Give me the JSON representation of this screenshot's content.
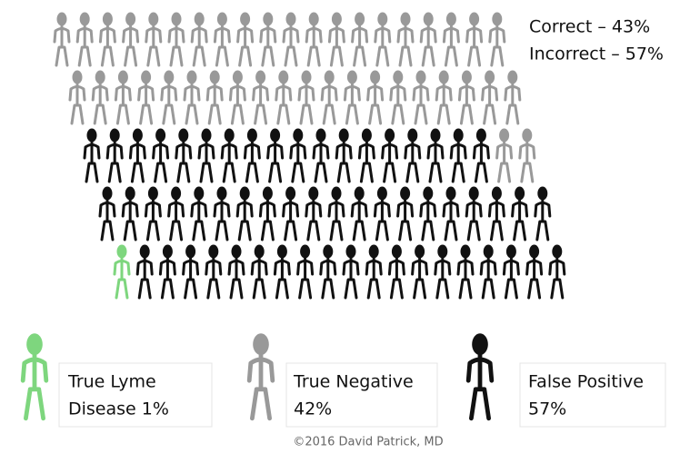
{
  "header": {
    "lines": [
      "Correct – 43%",
      "Incorrect – 57%"
    ]
  },
  "groups": [
    {
      "label": [
        "True Negative",
        "42%"
      ],
      "count": 42,
      "color": "#999999"
    },
    {
      "label": [
        "False Positive",
        "57%"
      ],
      "count": 57,
      "color": "#111111"
    },
    {
      "label": [
        "True Lyme",
        "Disease 1%"
      ],
      "count": 1,
      "color": "#7ed67e"
    }
  ],
  "footer": "©2016 David Patrick, MD"
}
